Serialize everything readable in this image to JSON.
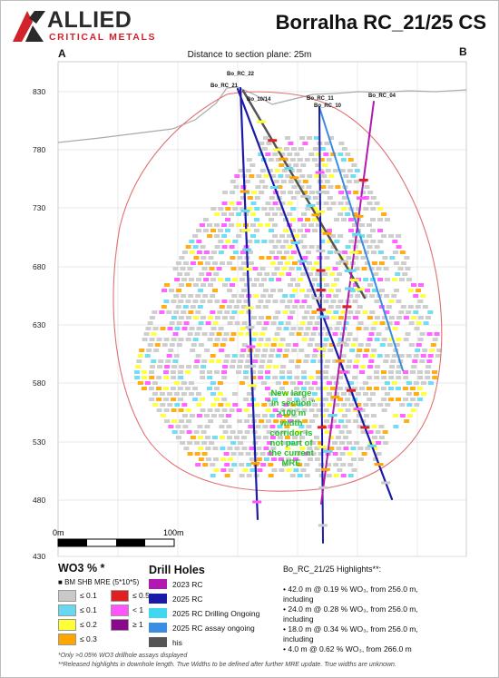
{
  "logo": {
    "word": "ALLIED",
    "sub": "CRITICAL METALS"
  },
  "title": "Borralha RC_21/25 CS",
  "section_end_a": "A",
  "section_end_b": "B",
  "distance_note": "Distance to section plane: 25m",
  "elevation_labels": [
    "830",
    "780",
    "730",
    "680",
    "630",
    "580",
    "530",
    "480",
    "430"
  ],
  "scale_bar": {
    "start": "0m",
    "end": "100m"
  },
  "hole_labels": {
    "rc22": "Bo_RC_22",
    "rc21": "Bo_RC_21",
    "rc18": "Bo_10/14",
    "rc11": "Bo_RC_11",
    "rc10": "Bo_RC_10",
    "rc04": "Bo_RC_04"
  },
  "annotation": [
    "New large",
    "\"in section\"",
    ">100 m",
    "width",
    "corridor is",
    "not part of",
    "the current",
    "MRE"
  ],
  "colors": {
    "grade_01a": "#c9c9c9",
    "grade_01b": "#66d9f0",
    "grade_02": "#ffff33",
    "grade_03": "#ffa500",
    "grade_05": "#e02020",
    "grade_lt1": "#ff55ff",
    "grade_ge1": "#8b0a8b",
    "dh_2023": "#b01ab0",
    "dh_2025": "#1a1aa8",
    "dh_ongoing": "#40d8f0",
    "dh_assay": "#3a8de0",
    "dh_his": "#555555",
    "mre_outline": "#e07070",
    "topography": "#aaaaaa",
    "highlight_text": "#22c02a"
  },
  "legend": {
    "title": "WO3 % *",
    "model": "BM SHB MRE (5*10*5)",
    "grades": [
      {
        "label": "≤ 0.1",
        "color": "#c9c9c9"
      },
      {
        "label": "≤ 0.5",
        "color": "#e02020"
      },
      {
        "label": "≤ 0.1",
        "color": "#66d9f0"
      },
      {
        "label": "< 1",
        "color": "#ff55ff"
      },
      {
        "label": "≤ 0.2",
        "color": "#ffff33"
      },
      {
        "label": "≥ 1",
        "color": "#8b0a8b"
      },
      {
        "label": "≤ 0.3",
        "color": "#ffa500"
      }
    ]
  },
  "drill_holes": {
    "title": "Drill Holes",
    "items": [
      {
        "label": "2023 RC",
        "color": "#b01ab0"
      },
      {
        "label": "2025 RC",
        "color": "#1a1aa8"
      },
      {
        "label": "2025 RC Drilling Ongoing",
        "color": "#40d8f0"
      },
      {
        "label": "2025 RC assay ongoing",
        "color": "#3a8de0"
      },
      {
        "label": "his",
        "color": "#555555"
      }
    ]
  },
  "highlights": {
    "title": "Bo_RC_21/25 Highlights**:",
    "items": [
      "• 42.0 m @ 0.19 % WO₃, from 256.0 m,",
      "including",
      "• 24.0 m @ 0.28 % WO₃, from 256.0 m,",
      "including",
      "• 18.0 m @ 0.34 % WO₃, from 256.0 m,",
      "including",
      "• 4.0 m @ 0.62 % WO₃, from 266.0 m"
    ]
  },
  "footnotes": [
    "*Only >0.05% WO3 drillhole assays displayed",
    "**Released highlights in downhole length. True Widths to be defined after further MRE update. True widths are unknown."
  ]
}
